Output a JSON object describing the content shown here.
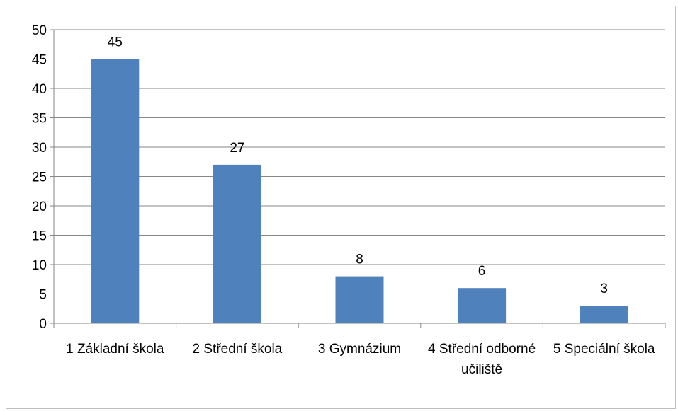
{
  "chart_data": {
    "type": "bar",
    "categories": [
      "1 Základní škola",
      "2 Střední škola",
      "3 Gymnázium",
      "4 Střední odborné učiliště",
      "5 Speciální škola"
    ],
    "values": [
      45,
      27,
      8,
      6,
      3
    ],
    "data_labels": [
      "45",
      "27",
      "8",
      "6",
      "3"
    ],
    "yticks": [
      "0",
      "5",
      "10",
      "15",
      "20",
      "25",
      "30",
      "35",
      "40",
      "45",
      "50"
    ],
    "ylim": [
      0,
      50
    ],
    "grid": true,
    "legend": "none",
    "bar_color": "#4f81bd",
    "grid_color": "#868686"
  }
}
